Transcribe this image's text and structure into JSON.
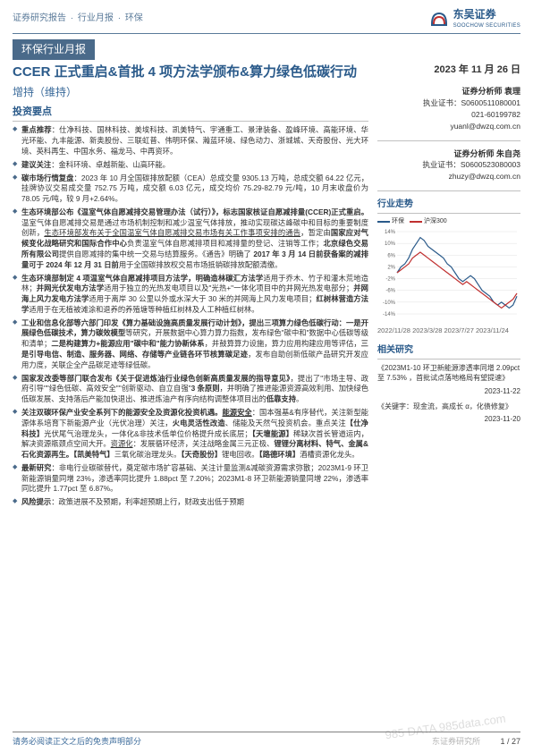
{
  "header": {
    "breadcrumb_parts": [
      "证券研究报告",
      "行业月报",
      "环保"
    ],
    "brand_cn": "东吴证券",
    "brand_en": "SOOCHOW SECURITIES",
    "logo_color_a": "#2a5a8a",
    "logo_color_b": "#c03030"
  },
  "section_bar": "环保行业月报",
  "title": "CCER 正式重启&首批 4 项方法学颁布&算力绿色低碳行动",
  "rating": "增持（维持）",
  "keypoints_heading": "投资要点",
  "bullets": [
    "<span class='bold'>重点推荐</span>：仕净科技、国林科技、美埃科技、凯美特气、宇通重工、景津装备、盈峰环境、高能环境、华光环能、九丰能源、新奥股份、三联虹普、伟明环保、瀚蓝环境、绿色动力、浙城城、天奇股份、光大环境、英科再生、中国水务、福龙马、中再资环。",
    "<span class='bold'>建议关注</span>：金科环境、卓越新能、山高环能。",
    "<span class='bold'>碳市场行情复盘</span>：2023 年 10 月全国碳排放配额（CEA）总成交量 9305.13 万吨，总成交额 64.22 亿元，挂牌协议交易成交量 752.75 万吨，成交额 6.03 亿元，成交均价 75.29-82.79 元/吨，10 月末收盘价为 78.05 元/吨，较 9 月+2.64%。",
    "<span class='bold'>生态环境部公布《温室气体自愿减排交易管理办法（试行）》，标志国家核证自愿减排量(CCER)正式重启。</span>温室气体自愿减排交易是通过市场机制控制和减少温室气体排放，推动实现碳达峰碳中和目标的重要制度创新，<span class='underline'>生态环境部发布关于全国温室气体自愿减排交易市场有关工作事项安排的通告</span>，暂定由<span class='bold'>国家应对气候变化战略研究和国际合作中心</span>负责温室气体自愿减排项目和减排量的登记、注销等工作；<span class='bold'>北京绿色交易所有限公司</span>提供自愿减排的集中统一交易与结算服务。《通告》明确了 <span class='bold'>2017 年 3 月 14 日前获备案的减排量可于 2024 年 12 月 31 日前</span>用于全国碳排放权交易市场抵销碳排放配额清缴。",
    "<span class='bold'>生态环境部制定 4 项温室气体自愿减排项目方法学，明确造林碳汇方法学</span>适用于乔木、竹子和灌木荒地造林；<span class='bold'>并网光伏发电方法学</span>适用于独立的光热发电项目以及\"光热+\"一体化项目中的并网光热发电部分；<span class='bold'>并网海上风力发电方法学</span>适用于离岸 30 公里以外或水深大于 30 米的并网海上风力发电项目；<span class='bold'>红树林营造方法学</span>适用于在无植被滩涂和退养的养殖塘等种植红树林及人工种植红树林。",
    "<span class='bold'>工业和信息化部等六部门印发《算力基础设施高质量发展行动计划》，提出三项算力绿色低碳行动：一是开展绿色低碳技术，算力碳效模型</span>等研究，开展数据中心算力算力指数，发布绿色\"碳中和\"数据中心低碳等级和清单；<span class='bold'>二是构建算力+能源应用\"碳中和\"能力协新体系</span>，并鼓算算力设施，算力应用构建应用等评估，<span class='bold'>三是引导电信、制造、服务器、网络、存储等产业链各环节核算碳足迹</span>，发布自助创新低碳产品研究开发应用力度，关联企全产品碳足迹等绿低碳。",
    "<span class='bold'>国家发改委等部门联合发布《关于促进炼油行业绿色创新高质量发展的指导意见》</span>，提出了\"市场主导、政府引导\"\"绿色低碳、高效安全\"\"创新驱动、自立自强\"<span class='bold'>3 条原则</span>，并明确了推进能源资源高效利用、加快绿色低碳发展、支持落后产能加快退出、推进炼油产有序向结构调整体项目出的<span class='bold'>低靠支持</span>。",
    "<span class='bold'>关注双碳环保产业安全系列下的能源安全及资源化投资机遇。<span class='underline'>能源安全</span></span>：国本强基&有序替代，关注新型能源体系培育下新能源产业（光伏冶理）关注，<span class='bold'>火电灵活性改造</span>、储能及天然气投资机会。重点关注<span class='bold'>【仕净科技】</span>光伏尾气治理龙头，一体化&非技术低单位价格提升成长底层；<span class='bold'>【天壇能源】</span>稀缺次首长管道运内，解决资源瓶颈点空间大开。<span class='underline'>资源化</span>：发展循环经济，关注战略金属三元正极、<span class='bold'>锂锂分离材料、特气、金属&石化资源再生。【凯美特气】</span>三氧化碳治理龙头。<span class='bold'>【天奇股份】</span>锂电回收。<span class='bold'>【路德环境】</span>酒槽资源化龙头。",
    "<span class='bold'>最新研究</span>：非电行业碳碳替代，奠定碳市场扩容基础、关注计量监测&减碳资源需求弥散；2023M1-9 环卫新能源销量同增 23%，渗透率同比提升 1.88pct 至 7.20%；2023M1-8 环卫新能源销量同增 22%，渗透率同比提升 1.77pct 至 6.87%。",
    "<span class='bold'>风险提示</span>：政策进展不及预期，利率超预期上行，财政支出低于预期"
  ],
  "right": {
    "date": "2023 年 11 月 26 日",
    "analysts": [
      {
        "label": "证券分析师  袁理",
        "lines": [
          "执业证书：S0600511080001",
          "021-60199782",
          "yuanl@dwzq.com.cn"
        ]
      },
      {
        "label": "证券分析师  朱自尧",
        "lines": [
          "执业证书：S0600523080003",
          "zhuzy@dwzq.com.cn"
        ]
      }
    ],
    "trend_title": "行业走势",
    "chart": {
      "legend": [
        "环保",
        "沪深300"
      ],
      "colors": [
        "#2a5a8a",
        "#c03030"
      ],
      "x_labels": [
        "2022/11/28",
        "2023/3/28",
        "2023/7/27",
        "2023/11/24"
      ],
      "y_ticks": [
        "14%",
        "10%",
        "6%",
        "2%",
        "-2%",
        "-6%",
        "-10%",
        "-14%"
      ],
      "ylim": [
        -14,
        14
      ],
      "series1": [
        0,
        2,
        3,
        5,
        8,
        10,
        12,
        11,
        9,
        8,
        7,
        6,
        5,
        3,
        2,
        0,
        -2,
        -3,
        -2,
        -1,
        -2,
        -4,
        -6,
        -7,
        -8,
        -10,
        -11,
        -10,
        -11,
        -12,
        -11,
        -8
      ],
      "series2": [
        0,
        1,
        2,
        3,
        5,
        6,
        7,
        6,
        5,
        4,
        3,
        2,
        1,
        0,
        -1,
        -2,
        -3,
        -4,
        -3,
        -4,
        -5,
        -6,
        -7,
        -8,
        -9,
        -10,
        -11,
        -12,
        -11,
        -10,
        -9,
        -7
      ],
      "grid_color": "#e0e0e0",
      "bg": "#ffffff"
    },
    "research_title": "相关研究",
    "research": [
      {
        "text": "《2023M1-10 环卫新能源渗透率同增 2.09pct 至 7.53% ，首批试点落地格局有望提速》",
        "date": "2023-11-22"
      },
      {
        "text": "《关键字：现金流，高成长 α，化债修复》",
        "date": "2023-11-20"
      }
    ]
  },
  "footer": {
    "left": "请务必阅读正文之后的免责声明部分",
    "right_source": "东证券研究所",
    "page": "1 / 27"
  },
  "watermark": "985 DATA 985data.com"
}
